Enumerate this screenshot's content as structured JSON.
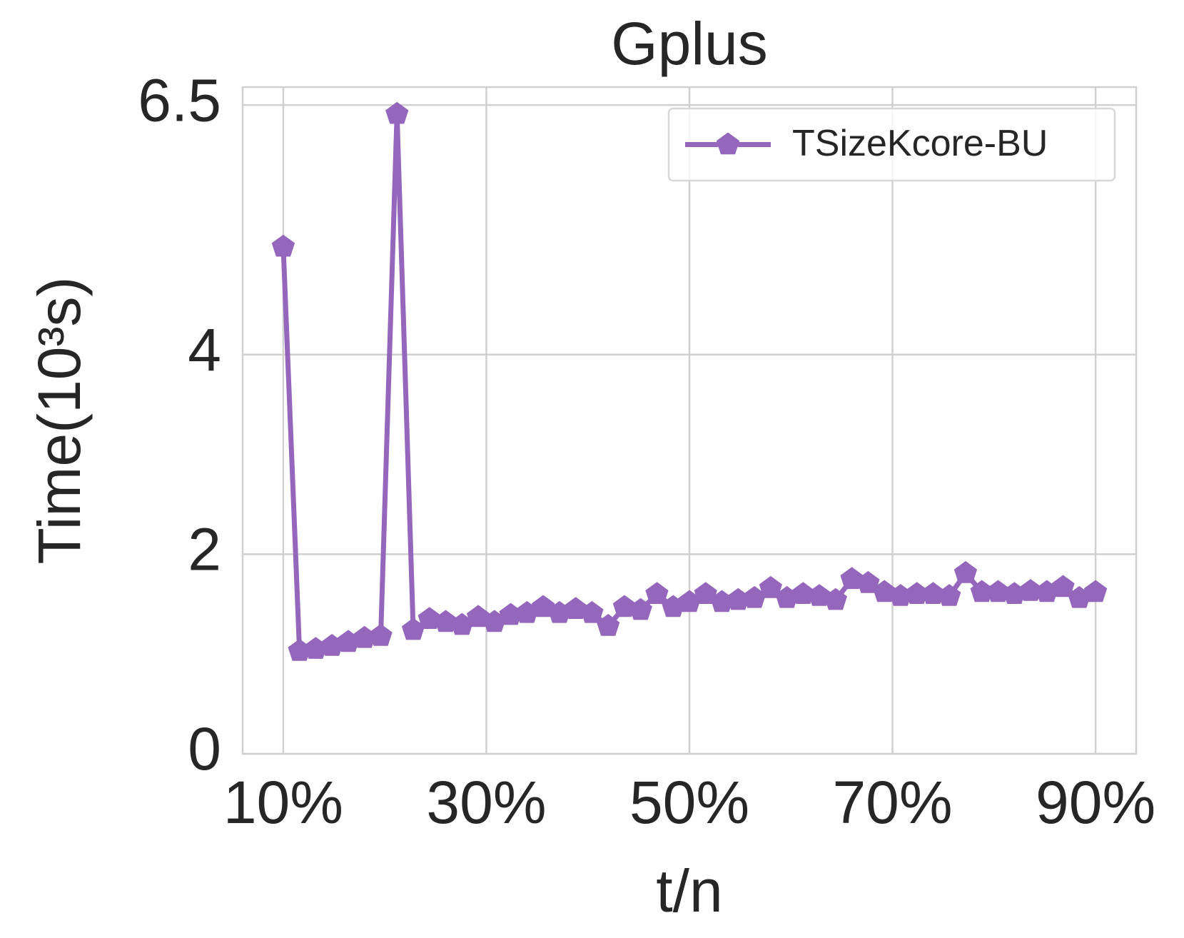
{
  "chart_data": {
    "type": "line",
    "title": "Gplus",
    "xlabel": "t/n",
    "ylabel": "Time(10³s)",
    "x": [
      10,
      11.6,
      13.2,
      14.8,
      16.4,
      18,
      19.6,
      21.2,
      22.8,
      24.4,
      26,
      27.6,
      29.2,
      30.8,
      32.4,
      34,
      35.6,
      37.2,
      38.8,
      40.4,
      42,
      43.6,
      45.2,
      46.8,
      48.4,
      50,
      51.6,
      53.2,
      54.8,
      56.4,
      58,
      59.6,
      61.2,
      62.8,
      64.4,
      66,
      67.6,
      69.2,
      70.8,
      72.4,
      74,
      75.6,
      77.2,
      78.8,
      80.4,
      82,
      83.6,
      85.2,
      86.8,
      88.4,
      90
    ],
    "series": [
      {
        "name": "TSizeKcore-BU",
        "color": "#9467bd",
        "values": [
          5.08,
          1.03,
          1.05,
          1.08,
          1.12,
          1.16,
          1.18,
          6.41,
          1.24,
          1.35,
          1.32,
          1.29,
          1.37,
          1.32,
          1.39,
          1.41,
          1.47,
          1.41,
          1.45,
          1.41,
          1.28,
          1.47,
          1.44,
          1.6,
          1.47,
          1.52,
          1.6,
          1.52,
          1.54,
          1.56,
          1.66,
          1.56,
          1.6,
          1.58,
          1.54,
          1.75,
          1.71,
          1.62,
          1.58,
          1.6,
          1.6,
          1.58,
          1.81,
          1.62,
          1.62,
          1.6,
          1.63,
          1.62,
          1.67,
          1.56,
          1.62
        ]
      }
    ],
    "xlim": [
      6,
      94
    ],
    "ylim": [
      0,
      6.68
    ],
    "xticks": [
      {
        "value": 10,
        "label": "10%"
      },
      {
        "value": 30,
        "label": "30%"
      },
      {
        "value": 50,
        "label": "50%"
      },
      {
        "value": 70,
        "label": "70%"
      },
      {
        "value": 90,
        "label": "90%"
      }
    ],
    "yticks": [
      0,
      2,
      4,
      6.5
    ],
    "grid": true,
    "legend": "upper right"
  }
}
